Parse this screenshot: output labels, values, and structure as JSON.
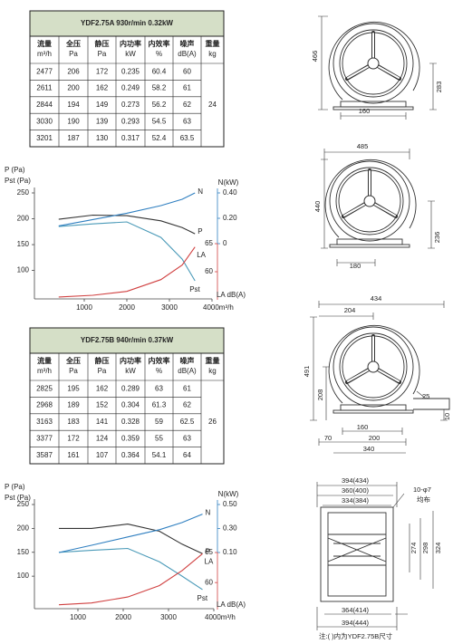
{
  "tables": [
    {
      "title": "YDF2.75A   930r/min   0.32kW",
      "columns": [
        [
          "流量",
          "m³/h"
        ],
        [
          "全压",
          "Pa"
        ],
        [
          "静压",
          "Pa"
        ],
        [
          "内功率",
          "kW"
        ],
        [
          "内效率",
          "%"
        ],
        [
          "噪声",
          "dB(A)"
        ],
        [
          "重量",
          "kg"
        ]
      ],
      "rows": [
        [
          2477,
          206,
          172,
          0.235,
          60.4,
          60
        ],
        [
          2611,
          200,
          162,
          0.249,
          58.2,
          61
        ],
        [
          2844,
          194,
          149,
          0.273,
          56.2,
          62
        ],
        [
          3030,
          190,
          139,
          0.293,
          54.5,
          63
        ],
        [
          3201,
          187,
          130,
          0.317,
          52.4,
          63.5
        ]
      ],
      "weight": 24
    },
    {
      "title": "YDF2.75B   940r/min   0.37kW",
      "columns": [
        [
          "流量",
          "m³/h"
        ],
        [
          "全压",
          "Pa"
        ],
        [
          "静压",
          "Pa"
        ],
        [
          "内功率",
          "kW"
        ],
        [
          "内效率",
          "%"
        ],
        [
          "噪声",
          "dB(A)"
        ],
        [
          "重量",
          "kg"
        ]
      ],
      "rows": [
        [
          2825,
          195,
          162,
          0.289,
          63,
          61
        ],
        [
          2968,
          189,
          152,
          0.304,
          61.3,
          62
        ],
        [
          3163,
          183,
          141,
          0.328,
          59,
          62.5
        ],
        [
          3377,
          172,
          124,
          0.359,
          55,
          63
        ],
        [
          3587,
          161,
          107,
          0.364,
          54.1,
          64
        ]
      ],
      "weight": 26
    }
  ],
  "chart_data": [
    {
      "type": "line",
      "ylabels": [
        {
          "text": "P   (Pa)",
          "color": "#c83232"
        },
        {
          "text": "Pst  (Pa)",
          "color": "#3a8fb0"
        }
      ],
      "y2label": "N(kW)",
      "y3label": "LA dB(A)",
      "xlim": [
        0,
        4000
      ],
      "xticks": [
        1000,
        2000,
        3000,
        {
          "value": 4000,
          "label": "4000m³/h"
        }
      ],
      "ylim": [
        45,
        250
      ],
      "yticks": [
        100,
        150,
        200,
        250
      ],
      "y2lim": [
        0,
        0.4
      ],
      "y2ticks": [
        {
          "value": 0.4,
          "label": "0.40"
        },
        {
          "value": 0.2,
          "label": "0.20"
        },
        0
      ],
      "y3lim": [
        55,
        65
      ],
      "y3ticks": [
        65,
        60
      ],
      "x": [
        400,
        1200,
        2000,
        2800,
        3300,
        3600
      ],
      "series": [
        {
          "name": "P",
          "color": "#333333",
          "axis": "y",
          "values": [
            199,
            207,
            206,
            196,
            183,
            171
          ]
        },
        {
          "name": "Pst",
          "color": "#4a9ab8",
          "axis": "y",
          "values": [
            185,
            190,
            194,
            164,
            122,
            80
          ]
        },
        {
          "name": "N",
          "color": "#2f7fc0",
          "axis": "y2",
          "values": [
            0.14,
            0.19,
            0.24,
            0.3,
            0.35,
            0.4
          ]
        },
        {
          "name": "LA",
          "color": "#d04040",
          "axis": "y3",
          "values": [
            55.5,
            55.8,
            56.5,
            58.6,
            61.2,
            64.4
          ]
        }
      ]
    },
    {
      "type": "line",
      "ylabels": [
        {
          "text": "P   (Pa)",
          "color": "#c83232"
        },
        {
          "text": "Pst  (Pa)",
          "color": "#3a8fb0"
        }
      ],
      "y2label": "N(kW)",
      "y3label": "LA dB(A)",
      "xlim": [
        0,
        4000
      ],
      "xticks": [
        1000,
        2000,
        3000,
        {
          "value": 4000,
          "label": "4000m³/h"
        }
      ],
      "ylim": [
        32,
        250
      ],
      "yticks": [
        100,
        150,
        200,
        250
      ],
      "y2lim": [
        0.1,
        0.5
      ],
      "y2ticks": [
        {
          "value": 0.5,
          "label": "0.50"
        },
        {
          "value": 0.3,
          "label": "0.30"
        },
        {
          "value": 0.1,
          "label": "0.10"
        }
      ],
      "y3lim": [
        55.5,
        65
      ],
      "y3ticks": [
        65,
        60
      ],
      "x": [
        580,
        1300,
        2100,
        2800,
        3300,
        3750
      ],
      "series": [
        {
          "name": "P",
          "color": "#333333",
          "axis": "y",
          "values": [
            200,
            200,
            209,
            194,
            167,
            147
          ]
        },
        {
          "name": "Pst",
          "color": "#4a9ab8",
          "axis": "y",
          "values": [
            150,
            154,
            158,
            130,
            100,
            72
          ]
        },
        {
          "name": "N",
          "color": "#2f7fc0",
          "axis": "y2",
          "values": [
            0.1,
            0.16,
            0.23,
            0.29,
            0.35,
            0.42
          ]
        },
        {
          "name": "LA",
          "color": "#d04040",
          "axis": "y3",
          "values": [
            56.3,
            56.6,
            57.6,
            59.5,
            62,
            64.8
          ]
        }
      ]
    }
  ],
  "drawings": [
    [
      "466",
      "283",
      "160"
    ],
    [
      "485",
      "440",
      "236",
      "180"
    ],
    [
      "434",
      "204",
      "491",
      "208",
      "25",
      "160",
      "70",
      "200",
      "340",
      "10"
    ],
    [
      "394(434)",
      "360(400)",
      "334(384)",
      "10-φ7",
      "均布",
      "274",
      "298",
      "324",
      "364(414)",
      "394(444)"
    ]
  ],
  "note": "注:( )内为YDF2.75B尺寸"
}
